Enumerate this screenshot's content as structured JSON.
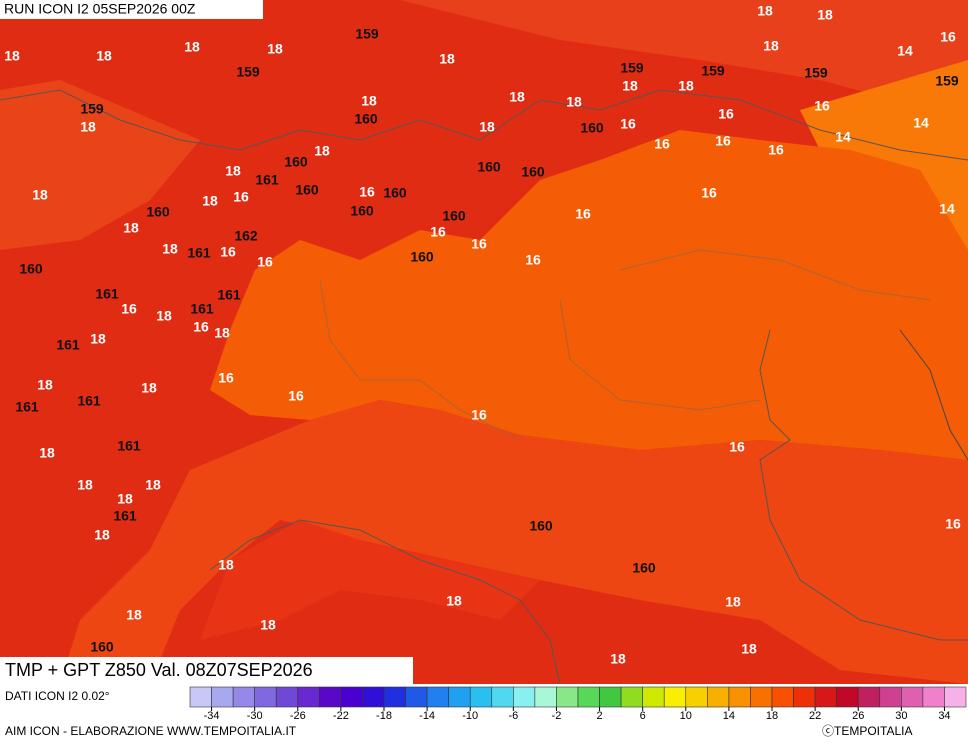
{
  "header": {
    "run": "RUN ICON I2 05SEP2026 00Z"
  },
  "map": {
    "title": "TMP + GPT Z850 Val. 08Z07SEP2026",
    "contour_labels": [
      18,
      18,
      16,
      14,
      18,
      18,
      18,
      18,
      18,
      159,
      18,
      159,
      159,
      159,
      159,
      18,
      18,
      159,
      159,
      18,
      18,
      160,
      18,
      18,
      18,
      160,
      16,
      16,
      16,
      14,
      16,
      16,
      16,
      14,
      160,
      18,
      160,
      160,
      18,
      161,
      160,
      16,
      160,
      18,
      18,
      16,
      16,
      160,
      160,
      16,
      14,
      160,
      18,
      162,
      18,
      161,
      16,
      16,
      16,
      16,
      160,
      16,
      160,
      161,
      161,
      16,
      161,
      18,
      16,
      18,
      161,
      18,
      16,
      18,
      18,
      161,
      161,
      16,
      16,
      161,
      16,
      18,
      18,
      18,
      18,
      161,
      18,
      160,
      16,
      18,
      160,
      18,
      18,
      18,
      18,
      160,
      18,
      18
    ]
  },
  "colorbar": {
    "lim": [
      -36,
      36
    ],
    "colors": [
      "#c8c8f8",
      "#a8a8f0",
      "#9488e8",
      "#8068e0",
      "#7048d8",
      "#6a28d0",
      "#5a08c8",
      "#4a00d0",
      "#3010d8",
      "#2030e0",
      "#2058e8",
      "#2080f0",
      "#20a0f0",
      "#28c0f0",
      "#50d8f0",
      "#88f0f0",
      "#a8f8d8",
      "#88e888",
      "#58d858",
      "#40c840",
      "#90dc20",
      "#d0e800",
      "#f8f000",
      "#f8d000",
      "#f8b000",
      "#f89000",
      "#f87000",
      "#f85000",
      "#ee3008",
      "#d81818",
      "#c00828",
      "#c02060",
      "#d04090",
      "#e060b0",
      "#f080cc",
      "#f8b0e8"
    ],
    "ticks": [
      -34,
      -30,
      -26,
      -22,
      -18,
      -14,
      -10,
      -6,
      -2,
      2,
      6,
      10,
      14,
      18,
      22,
      26,
      30,
      34
    ]
  },
  "footer": {
    "source": "DATI ICON I2 0.02°",
    "credit": "AIM ICON - ELABORAZIONE WWW.TEMPOITALIA.IT",
    "copyright": "ⓒTEMPOITALIA"
  }
}
